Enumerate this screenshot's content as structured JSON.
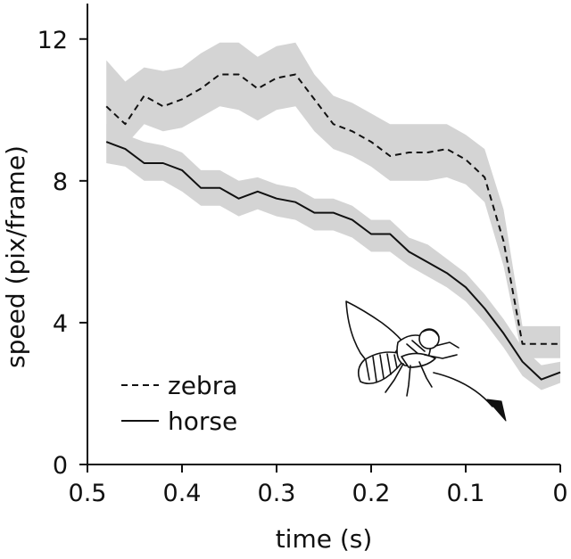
{
  "chart_data": {
    "type": "line",
    "xlabel": "time (s)",
    "ylabel": "speed (pix/frame)",
    "xlim": [
      0.5,
      0
    ],
    "ylim": [
      0,
      13
    ],
    "x_reversed": true,
    "x_ticks": [
      0.5,
      0.4,
      0.3,
      0.2,
      0.1,
      0
    ],
    "x_tick_labels": [
      "0.5",
      "0.4",
      "0.3",
      "0.2",
      "0.1",
      "0"
    ],
    "y_ticks": [
      0,
      4,
      8,
      12
    ],
    "y_tick_labels": [
      "0",
      "4",
      "8",
      "12"
    ],
    "grid": false,
    "legend_position": "bottom-left",
    "band_color": "#d4d4d4",
    "x": [
      0.48,
      0.46,
      0.44,
      0.42,
      0.4,
      0.38,
      0.36,
      0.34,
      0.32,
      0.3,
      0.28,
      0.26,
      0.24,
      0.22,
      0.2,
      0.18,
      0.16,
      0.14,
      0.12,
      0.1,
      0.08,
      0.06,
      0.04,
      0.02,
      0.0
    ],
    "series": [
      {
        "name": "zebra",
        "style": "dashed",
        "values": [
          10.1,
          9.6,
          10.4,
          10.1,
          10.3,
          10.6,
          11.0,
          11.0,
          10.6,
          10.9,
          11.0,
          10.3,
          9.6,
          9.4,
          9.1,
          8.7,
          8.8,
          8.8,
          8.9,
          8.6,
          8.1,
          6.3,
          3.4,
          3.4,
          3.4
        ],
        "band_upper": [
          11.4,
          10.8,
          11.2,
          11.1,
          11.2,
          11.6,
          11.9,
          11.9,
          11.5,
          11.8,
          11.9,
          11.0,
          10.4,
          10.2,
          9.9,
          9.6,
          9.6,
          9.6,
          9.6,
          9.3,
          8.9,
          7.2,
          3.9,
          3.9,
          3.9
        ],
        "band_lower": [
          9.0,
          9.0,
          9.6,
          9.4,
          9.5,
          9.8,
          10.1,
          10.0,
          9.7,
          10.0,
          10.1,
          9.4,
          8.9,
          8.7,
          8.4,
          8.0,
          8.0,
          8.0,
          8.1,
          7.9,
          7.4,
          5.6,
          3.0,
          3.0,
          3.0
        ]
      },
      {
        "name": "horse",
        "style": "solid",
        "values": [
          9.1,
          8.9,
          8.5,
          8.5,
          8.3,
          7.8,
          7.8,
          7.5,
          7.7,
          7.5,
          7.4,
          7.1,
          7.1,
          6.9,
          6.5,
          6.5,
          6.0,
          5.7,
          5.4,
          5.0,
          4.4,
          3.7,
          2.9,
          2.4,
          2.6
        ],
        "band_upper": [
          9.6,
          9.3,
          9.1,
          9.0,
          8.8,
          8.3,
          8.3,
          8.0,
          8.1,
          7.9,
          7.8,
          7.5,
          7.5,
          7.3,
          6.9,
          6.9,
          6.4,
          6.2,
          5.8,
          5.4,
          4.8,
          4.1,
          3.3,
          2.8,
          2.9
        ],
        "band_lower": [
          8.5,
          8.4,
          8.0,
          8.0,
          7.7,
          7.3,
          7.3,
          7.0,
          7.2,
          7.0,
          6.9,
          6.6,
          6.6,
          6.4,
          6.0,
          6.0,
          5.6,
          5.3,
          5.0,
          4.6,
          4.0,
          3.3,
          2.5,
          2.1,
          2.3
        ]
      }
    ]
  },
  "illustration": {
    "name": "horsefly-icon"
  }
}
